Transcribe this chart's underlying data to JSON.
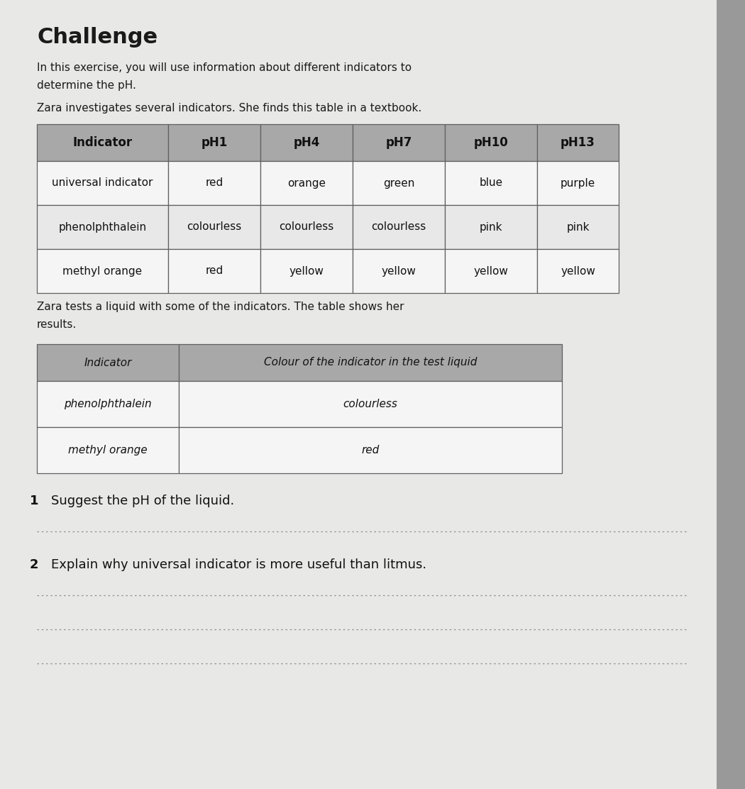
{
  "page_bg": "#e4e4e2",
  "dark_edge_color": "#b0b0b0",
  "title": "Challenge",
  "intro_line1": "In this exercise, you will use information about different indicators to",
  "intro_line2": "determine the pH.",
  "intro_line3": "Zara investigates several indicators. She finds this table in a textbook.",
  "table1_header_bg": "#a8a8a8",
  "table1_columns": [
    "Indicator",
    "pH1",
    "pH4",
    "pH7",
    "pH10",
    "pH13"
  ],
  "table1_rows": [
    [
      "universal indicator",
      "red",
      "orange",
      "green",
      "blue",
      "purple"
    ],
    [
      "phenolphthalein",
      "colourless",
      "colourless",
      "colourless",
      "pink",
      "pink"
    ],
    [
      "methyl orange",
      "red",
      "yellow",
      "yellow",
      "yellow",
      "yellow"
    ]
  ],
  "table2_header_bg": "#a8a8a8",
  "table2_col1": "Indicator",
  "table2_col2": "Colour of the indicator in the test liquid",
  "table2_rows": [
    [
      "phenolphthalein",
      "colourless"
    ],
    [
      "methyl orange",
      "red"
    ]
  ],
  "zara_text": "Zara tests a liquid with some of the indicators. The table shows her",
  "zara_text2": "results.",
  "q1_num": "1",
  "q1_text": "Suggest the pH of the liquid.",
  "q2_num": "2",
  "q2_text": "Explain why universal indicator is more useful than litmus.",
  "dot_color": "#909090"
}
